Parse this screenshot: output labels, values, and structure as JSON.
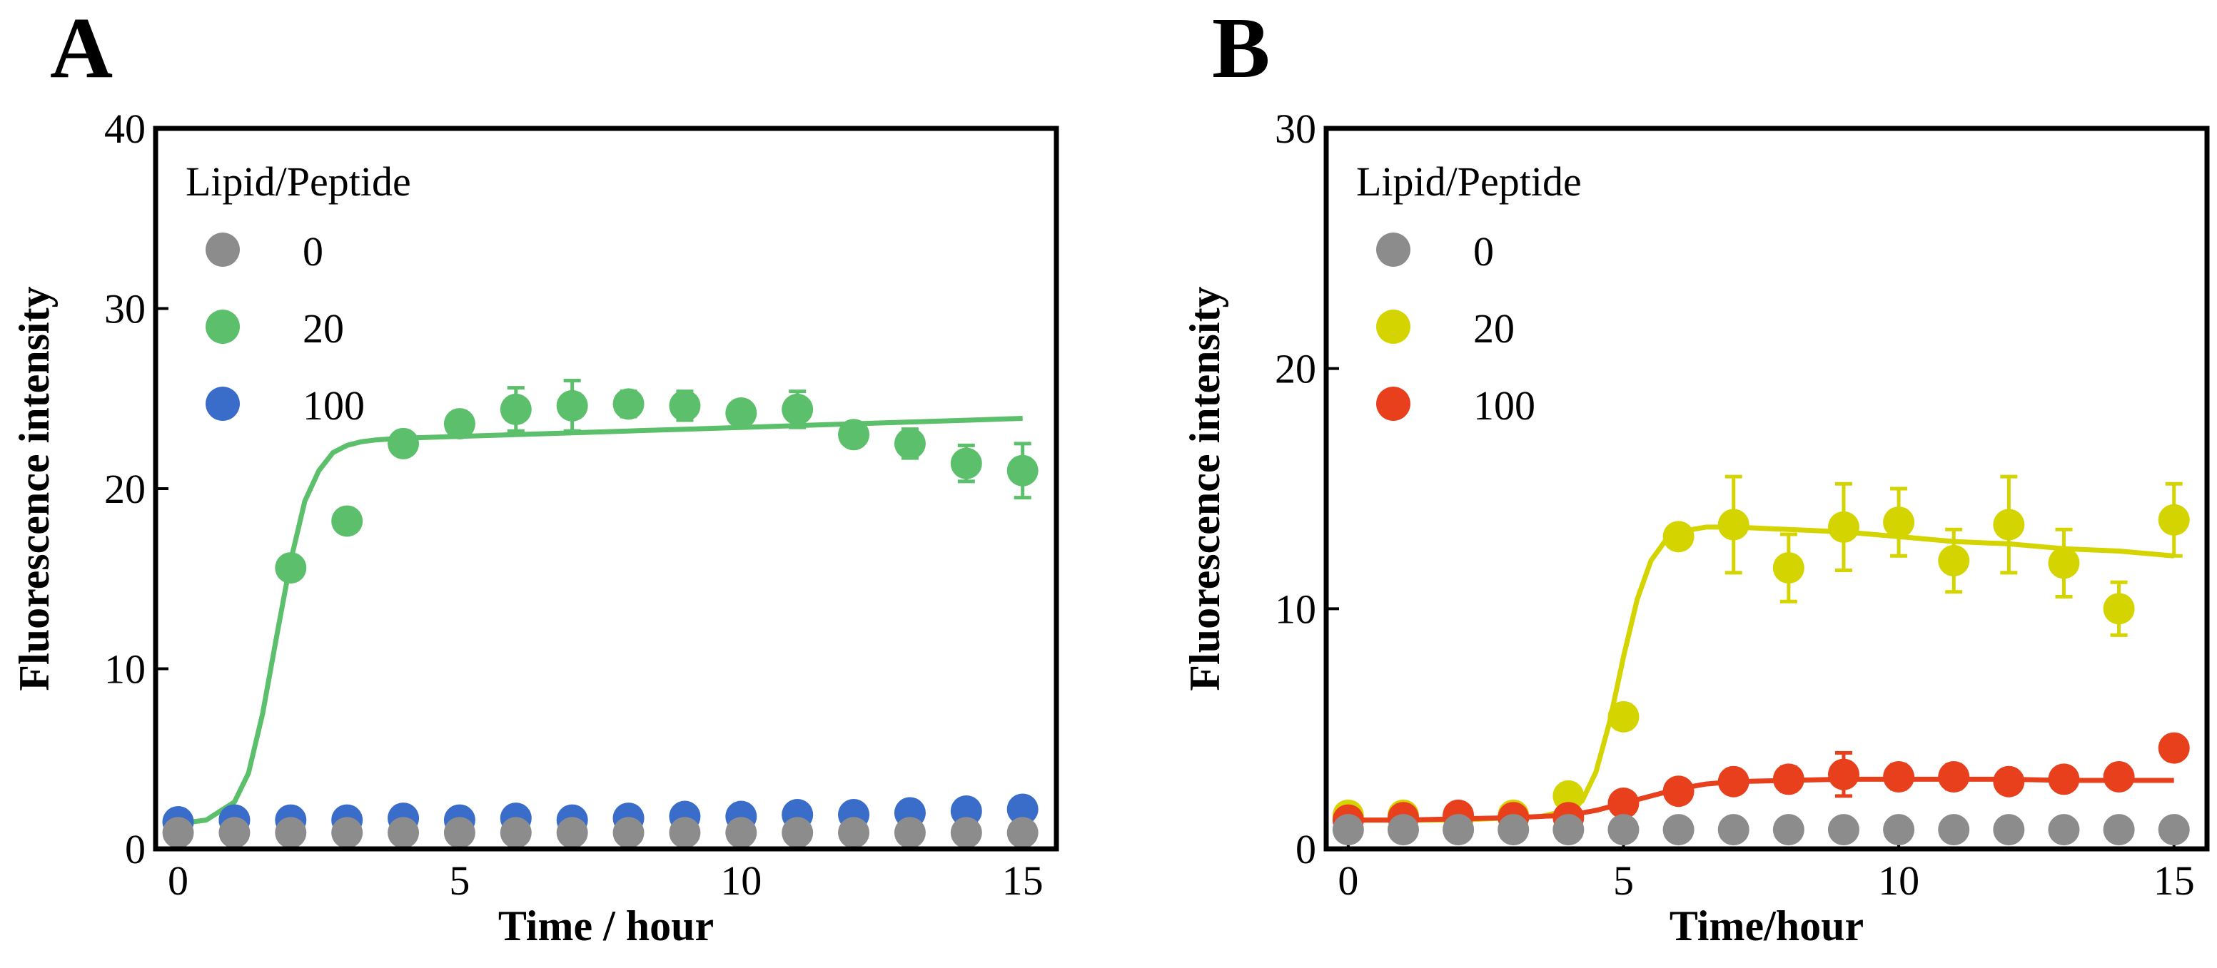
{
  "chart_data": [
    {
      "type": "scatter",
      "panel_label": "A",
      "xlabel": "Time / hour",
      "ylabel": "Fluorescence intensity",
      "xlim": [
        -0.4,
        15.6
      ],
      "ylim": [
        0,
        40
      ],
      "xticks": [
        0,
        5,
        10,
        15
      ],
      "xtick_labels": [
        "0",
        "5",
        "10",
        "15"
      ],
      "yticks": [
        0,
        10,
        20,
        30,
        40
      ],
      "ytick_labels": [
        "0",
        "10",
        "20",
        "30",
        "40"
      ],
      "legend": {
        "title": "Lipid/Peptide",
        "position": "top-left",
        "entries": [
          "0",
          "20",
          "100"
        ]
      },
      "series": [
        {
          "name": "0",
          "color": "#8c8c8c",
          "x": [
            0,
            1,
            2,
            3,
            4,
            5,
            6,
            7,
            8,
            9,
            10,
            11,
            12,
            13,
            14,
            15
          ],
          "y": [
            0.9,
            0.9,
            0.9,
            0.9,
            0.9,
            0.9,
            0.9,
            0.9,
            0.9,
            0.9,
            0.9,
            0.9,
            0.9,
            0.9,
            0.9,
            0.9
          ],
          "err": [
            0.2,
            0.2,
            0.2,
            0.2,
            0.2,
            0.2,
            0.2,
            0.2,
            0.2,
            0.2,
            0.2,
            0.2,
            0.2,
            0.2,
            0.2,
            0.2
          ]
        },
        {
          "name": "20",
          "color": "#5cbf6b",
          "x": [
            0,
            1,
            2,
            3,
            4,
            5,
            6,
            7,
            8,
            9,
            10,
            11,
            12,
            13,
            14,
            15
          ],
          "y": [
            1.5,
            1.6,
            15.6,
            18.2,
            22.5,
            23.6,
            24.4,
            24.6,
            24.7,
            24.6,
            24.2,
            24.4,
            23.0,
            22.5,
            21.4,
            21.0
          ],
          "err": [
            0.3,
            0.3,
            0.6,
            0.5,
            0.6,
            0.6,
            1.2,
            1.4,
            0.7,
            0.8,
            0.5,
            1.0,
            0.6,
            0.8,
            1.0,
            1.5
          ],
          "fit": {
            "x": [
              0,
              0.5,
              1,
              1.25,
              1.5,
              1.75,
              2,
              2.25,
              2.5,
              2.75,
              3,
              3.25,
              3.5,
              4,
              5,
              6,
              7,
              8,
              9,
              10,
              11,
              12,
              13,
              14,
              15
            ],
            "y": [
              1.4,
              1.6,
              2.6,
              4.2,
              7.5,
              11.8,
              16.0,
              19.3,
              21.0,
              22.0,
              22.4,
              22.6,
              22.7,
              22.8,
              22.9,
              23.0,
              23.1,
              23.2,
              23.3,
              23.4,
              23.5,
              23.6,
              23.7,
              23.8,
              23.9
            ]
          }
        },
        {
          "name": "100",
          "color": "#3a6cc9",
          "x": [
            0,
            1,
            2,
            3,
            4,
            5,
            6,
            7,
            8,
            9,
            10,
            11,
            12,
            13,
            14,
            15
          ],
          "y": [
            1.5,
            1.6,
            1.6,
            1.6,
            1.7,
            1.6,
            1.7,
            1.6,
            1.7,
            1.8,
            1.8,
            1.9,
            1.9,
            2.0,
            2.1,
            2.2
          ],
          "err": [
            0.3,
            0.3,
            0.3,
            0.3,
            0.3,
            0.3,
            0.3,
            0.3,
            0.3,
            0.3,
            0.3,
            0.3,
            0.3,
            0.3,
            0.3,
            0.3
          ]
        }
      ]
    },
    {
      "type": "scatter",
      "panel_label": "B",
      "xlabel": "Time/hour",
      "ylabel": "Fluorescence intensity",
      "xlim": [
        -0.4,
        15.6
      ],
      "ylim": [
        0,
        30
      ],
      "xticks": [
        0,
        5,
        10,
        15
      ],
      "xtick_labels": [
        "0",
        "5",
        "10",
        "15"
      ],
      "yticks": [
        0,
        10,
        20,
        30
      ],
      "ytick_labels": [
        "0",
        "10",
        "20",
        "30"
      ],
      "legend": {
        "title": "Lipid/Peptide",
        "position": "top-left",
        "entries": [
          "0",
          "20",
          "100"
        ]
      },
      "series": [
        {
          "name": "0",
          "color": "#8c8c8c",
          "x": [
            0,
            1,
            2,
            3,
            4,
            5,
            6,
            7,
            8,
            9,
            10,
            11,
            12,
            13,
            14,
            15
          ],
          "y": [
            0.8,
            0.8,
            0.8,
            0.8,
            0.8,
            0.8,
            0.8,
            0.8,
            0.8,
            0.8,
            0.8,
            0.8,
            0.8,
            0.8,
            0.8,
            0.8
          ],
          "err": [
            0.2,
            0.2,
            0.2,
            0.2,
            0.2,
            0.2,
            0.2,
            0.2,
            0.2,
            0.2,
            0.2,
            0.2,
            0.2,
            0.2,
            0.2,
            0.2
          ]
        },
        {
          "name": "20",
          "color": "#d4d400",
          "x": [
            0,
            1,
            2,
            3,
            4,
            5,
            6,
            7,
            8,
            9,
            10,
            11,
            12,
            13,
            14,
            15
          ],
          "y": [
            1.4,
            1.4,
            1.3,
            1.4,
            2.2,
            5.5,
            13.0,
            13.5,
            11.7,
            13.4,
            13.6,
            12.0,
            13.5,
            11.9,
            10.0,
            13.7
          ],
          "err": [
            0.3,
            0.3,
            0.3,
            0.3,
            0.5,
            0.5,
            0.4,
            2.0,
            1.4,
            1.8,
            1.4,
            1.3,
            2.0,
            1.4,
            1.1,
            1.5
          ],
          "fit": {
            "x": [
              0,
              1,
              2,
              3,
              3.5,
              4,
              4.25,
              4.5,
              4.75,
              5,
              5.25,
              5.5,
              5.75,
              6,
              6.5,
              7,
              8,
              9,
              10,
              11,
              12,
              13,
              14,
              15
            ],
            "y": [
              1.2,
              1.2,
              1.2,
              1.3,
              1.35,
              1.6,
              2.0,
              3.2,
              5.3,
              8.0,
              10.4,
              12.0,
              12.8,
              13.2,
              13.4,
              13.4,
              13.3,
              13.2,
              13.0,
              12.8,
              12.7,
              12.5,
              12.4,
              12.2
            ]
          }
        },
        {
          "name": "100",
          "color": "#e8401c",
          "x": [
            0,
            1,
            2,
            3,
            4,
            5,
            6,
            7,
            8,
            9,
            10,
            11,
            12,
            13,
            14,
            15
          ],
          "y": [
            1.2,
            1.3,
            1.4,
            1.3,
            1.3,
            1.9,
            2.4,
            2.8,
            2.9,
            3.1,
            3.0,
            3.0,
            2.8,
            2.9,
            3.0,
            4.2
          ],
          "err": [
            0.3,
            0.3,
            0.3,
            0.3,
            0.3,
            0.3,
            0.4,
            0.4,
            0.5,
            0.9,
            0.5,
            0.5,
            0.4,
            0.4,
            0.4,
            0.4
          ],
          "fit": {
            "x": [
              0,
              1,
              2,
              3,
              4,
              4.5,
              5,
              5.5,
              6,
              6.5,
              7,
              8,
              9,
              10,
              11,
              12,
              13,
              14,
              15
            ],
            "y": [
              1.2,
              1.2,
              1.25,
              1.3,
              1.4,
              1.6,
              1.9,
              2.2,
              2.5,
              2.7,
              2.8,
              2.85,
              2.9,
              2.9,
              2.9,
              2.9,
              2.85,
              2.85,
              2.85
            ]
          }
        }
      ]
    }
  ]
}
